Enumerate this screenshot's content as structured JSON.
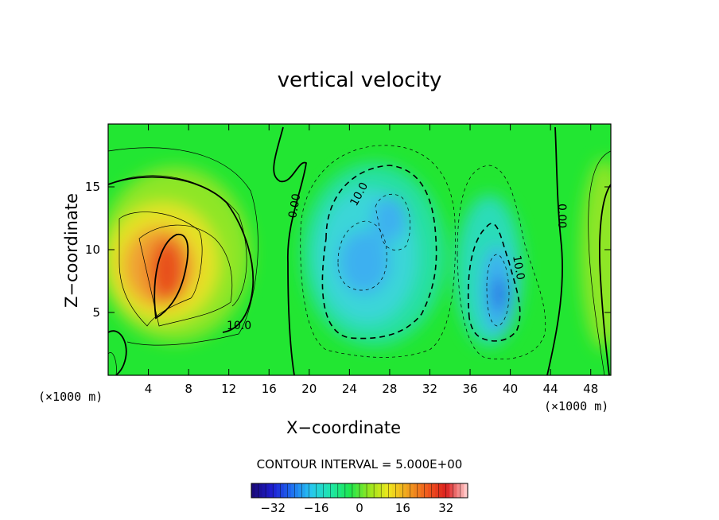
{
  "chart_data": {
    "type": "heatmap",
    "title": "vertical velocity",
    "xlabel": "X−coordinate",
    "ylabel": "Z−coordinate",
    "x_unit": "(×1000 m)",
    "y_unit": "(×1000 m)",
    "xlim": [
      0,
      50
    ],
    "ylim": [
      0,
      20
    ],
    "x_ticks": [
      4,
      8,
      12,
      16,
      20,
      24,
      28,
      32,
      36,
      40,
      44,
      48
    ],
    "y_ticks": [
      5,
      10,
      15
    ],
    "x_tick_labels": [
      "4",
      "8",
      "12",
      "16",
      "20",
      "24",
      "28",
      "32",
      "36",
      "40",
      "44",
      "48"
    ],
    "y_tick_labels": [
      "5",
      "10",
      "15"
    ],
    "contour_interval_text": "CONTOUR INTERVAL = 5.000E+00",
    "contour_interval": 5,
    "contour_labels": [
      "10.0",
      "0.00",
      "10.0",
      "10.0",
      "0.00"
    ],
    "colorbar": {
      "min": -40,
      "max": 40,
      "ticks": [
        -32,
        -16,
        0,
        16,
        32
      ],
      "tick_labels": [
        "−32",
        "−16",
        "0",
        "16",
        "32"
      ],
      "palette": [
        "#1a0a7a",
        "#1e1ed2",
        "#1e6ef0",
        "#28c8f0",
        "#1ee6aa",
        "#1ee650",
        "#96e61e",
        "#f0e61e",
        "#f0a01e",
        "#f05a1e",
        "#dc1e1e",
        "#ffc8c8"
      ]
    },
    "features": [
      {
        "name": "updraft",
        "x": 6.5,
        "z": 8,
        "peak": 28
      },
      {
        "name": "downdraft",
        "x": 26,
        "z": 10,
        "peak": -16
      },
      {
        "name": "downdraft",
        "x": 39,
        "z": 6.5,
        "peak": -22
      }
    ]
  }
}
